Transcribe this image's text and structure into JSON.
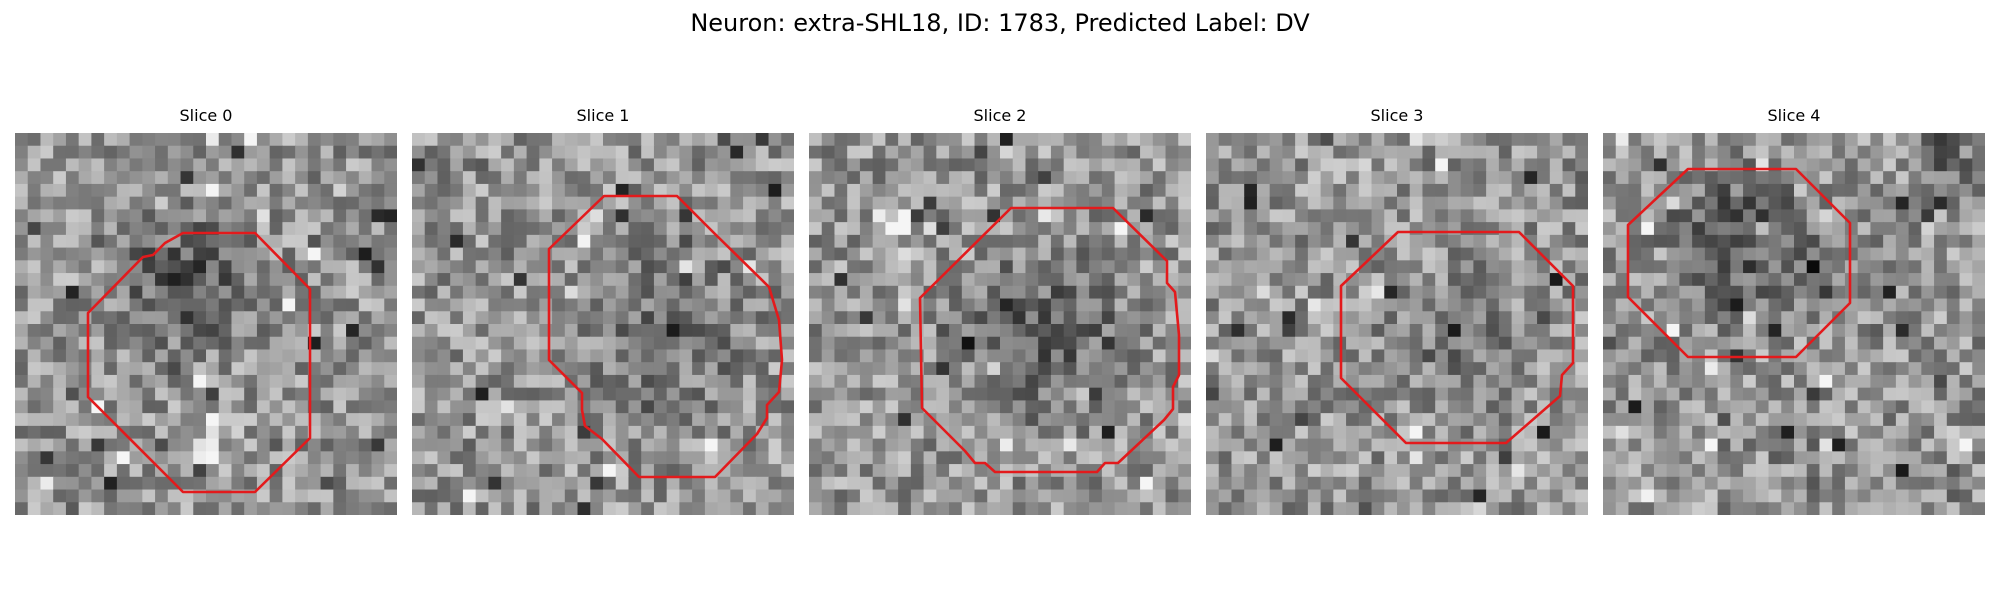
{
  "figure": {
    "title": "Neuron: extra-SHL18, ID: 1783, Predicted Label: DV"
  },
  "panels": [
    {
      "title": "Slice 0"
    },
    {
      "title": "Slice 1"
    },
    {
      "title": "Slice 2"
    },
    {
      "title": "Slice 3"
    },
    {
      "title": "Slice 4"
    }
  ],
  "style": {
    "contour_color": "#e31a1c",
    "colormap": "grayscale"
  }
}
